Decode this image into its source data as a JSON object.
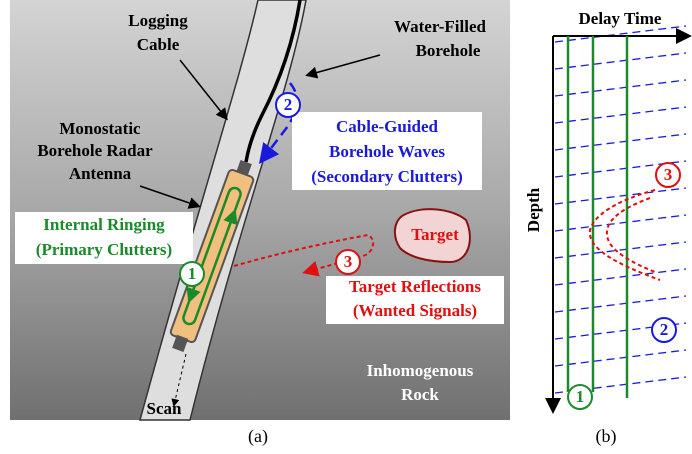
{
  "panel_a": {
    "caption": "(a)",
    "labels": {
      "logging_cable": [
        "Logging",
        "Cable"
      ],
      "water_filled_borehole": [
        "Water-Filled",
        "Borehole"
      ],
      "antenna": [
        "Monostatic",
        "Borehole Radar",
        "Antenna"
      ],
      "cable_guided": [
        "Cable-Guided",
        "Borehole Waves",
        "(Secondary Clutters)"
      ],
      "internal_ringing": [
        "Internal Ringing",
        "(Primary Clutters)"
      ],
      "target": "Target",
      "target_reflections": [
        "Target Reflections",
        "(Wanted Signals)"
      ],
      "rock": [
        "Inhomogenous",
        "Rock"
      ],
      "scan": "Scan"
    },
    "markers": [
      "1",
      "2",
      "3"
    ]
  },
  "panel_b": {
    "caption": "(b)",
    "x_axis": "Delay Time",
    "y_axis": "Depth",
    "markers": [
      "3",
      "2",
      "1"
    ]
  }
}
